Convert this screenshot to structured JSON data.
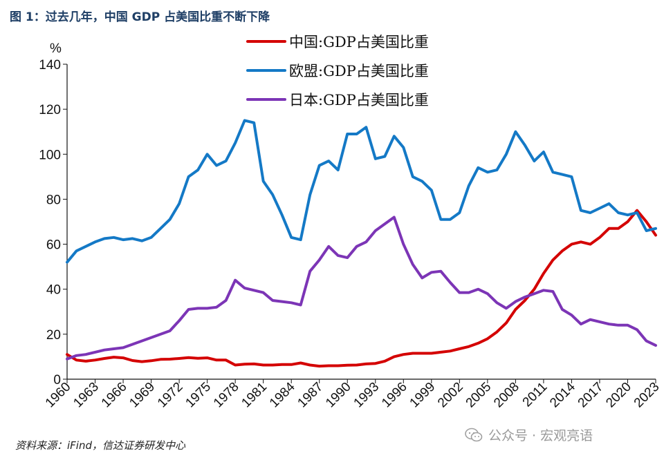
{
  "figure_title": "图 1：过去几年，中国 GDP 占美国比重不断下降",
  "source_note": "资料来源：iFind，信达证券研发中心",
  "watermark": {
    "text": "公众号 · 宏观亮语",
    "icon": "wechat-icon"
  },
  "chart_data": {
    "type": "line",
    "ylabel": "%",
    "ylim": [
      0,
      140
    ],
    "yticks": [
      0,
      20,
      40,
      60,
      80,
      100,
      120,
      140
    ],
    "xlim": [
      1960,
      2023
    ],
    "xticks": [
      "1960",
      "1963",
      "1966",
      "1969",
      "1972",
      "1975",
      "1978",
      "1981",
      "1984",
      "1987",
      "1990",
      "1993",
      "1996",
      "1999",
      "2002",
      "2005",
      "2008",
      "2011",
      "2014",
      "2017",
      "2020",
      "2023"
    ],
    "grid": false,
    "legend_position": "top-center",
    "x": [
      1960,
      1961,
      1962,
      1963,
      1964,
      1965,
      1966,
      1967,
      1968,
      1969,
      1970,
      1971,
      1972,
      1973,
      1974,
      1975,
      1976,
      1977,
      1978,
      1979,
      1980,
      1981,
      1982,
      1983,
      1984,
      1985,
      1986,
      1987,
      1988,
      1989,
      1990,
      1991,
      1992,
      1993,
      1994,
      1995,
      1996,
      1997,
      1998,
      1999,
      2000,
      2001,
      2002,
      2003,
      2004,
      2005,
      2006,
      2007,
      2008,
      2009,
      2010,
      2011,
      2012,
      2013,
      2014,
      2015,
      2016,
      2017,
      2018,
      2019,
      2020,
      2021,
      2022,
      2023
    ],
    "series": [
      {
        "name": "中国:GDP占美国比重",
        "color": "#d40000",
        "values": [
          11,
          8.5,
          8,
          8.5,
          9.2,
          9.8,
          9.5,
          8.3,
          7.8,
          8.2,
          8.8,
          8.9,
          9.2,
          9.6,
          9.3,
          9.5,
          8.5,
          8.5,
          6.3,
          6.7,
          6.8,
          6.3,
          6.3,
          6.5,
          6.5,
          7.2,
          6.3,
          5.8,
          6,
          6,
          6.2,
          6.3,
          6.8,
          7,
          8,
          10,
          11,
          11.5,
          11.5,
          11.5,
          12,
          12.5,
          13.5,
          14.5,
          16,
          18,
          21,
          25,
          31,
          35,
          40,
          47,
          53,
          57,
          60,
          61,
          60,
          63,
          67,
          67,
          70,
          75,
          70,
          64
        ]
      },
      {
        "name": "欧盟:GDP占美国比重",
        "color": "#1479c6",
        "values": [
          52,
          57,
          59,
          61,
          62.5,
          63,
          62,
          62.5,
          61.5,
          63,
          67,
          71,
          78,
          90,
          93,
          100,
          95,
          97,
          105,
          115,
          114,
          88,
          82,
          73,
          63,
          62,
          82,
          95,
          97,
          93,
          109,
          109,
          112,
          98,
          99,
          108,
          103,
          90,
          88,
          84,
          71,
          71,
          74,
          86,
          94,
          92,
          93,
          100,
          110,
          104,
          97,
          101,
          92,
          91,
          90,
          75,
          74,
          76,
          78,
          74,
          73,
          74,
          66,
          67
        ]
      },
      {
        "name": "日本:GDP占美国比重",
        "color": "#7c35b6",
        "values": [
          9,
          10.5,
          11,
          12,
          13,
          13.5,
          14,
          15.5,
          17,
          18.5,
          20,
          21.5,
          26,
          31,
          31.5,
          31.5,
          32,
          35,
          44,
          40.5,
          39.5,
          38.5,
          35,
          34.5,
          34,
          33,
          48,
          53,
          59,
          55,
          54,
          59,
          61,
          66,
          69,
          72,
          60,
          51,
          45,
          47.5,
          48,
          43,
          38.5,
          38.5,
          40,
          38,
          34,
          31.5,
          34.5,
          36.5,
          38,
          39.5,
          39,
          31,
          28.5,
          24.5,
          26.5,
          25.5,
          24.5,
          24,
          24,
          22,
          17,
          15
        ]
      }
    ]
  }
}
